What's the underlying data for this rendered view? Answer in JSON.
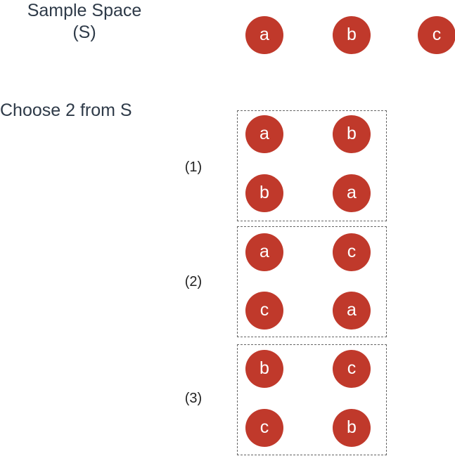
{
  "sample_space": {
    "title_line1": "Sample Space",
    "title_line2": "(S)",
    "elements": [
      "a",
      "b",
      "c"
    ]
  },
  "choose": {
    "title": "Choose 2 from S"
  },
  "groups": [
    {
      "label": "(1)",
      "pairs": [
        [
          "a",
          "b"
        ],
        [
          "b",
          "a"
        ]
      ]
    },
    {
      "label": "(2)",
      "pairs": [
        [
          "a",
          "c"
        ],
        [
          "c",
          "a"
        ]
      ]
    },
    {
      "label": "(3)",
      "pairs": [
        [
          "b",
          "c"
        ],
        [
          "c",
          "b"
        ]
      ]
    }
  ],
  "colors": {
    "circle_fill": "#c0392b",
    "circle_text": "#ffffff",
    "title_text": "#2e3a48",
    "box_border": "#666666"
  }
}
